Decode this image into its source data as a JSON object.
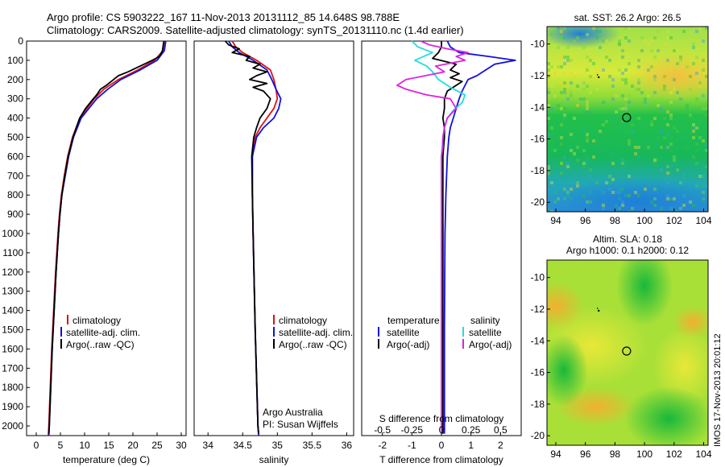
{
  "header": {
    "line1": "Argo profile: CS 5903222_167 11-Nov-2013 20131112_85 14.648S 98.788E",
    "line2": "Climatology: CARS2009. Satellite-adjusted climatology: synTS_20131110.nc (1.4d earlier)"
  },
  "side_stamp": "IMOS 17-Nov-2013 20:01:12",
  "colors": {
    "climatology": "#dd1111",
    "satellite": "#1111dd",
    "argo": "#000000",
    "sal_satellite": "#22dddd",
    "sal_argo": "#dd22dd"
  },
  "chart_data": [
    {
      "id": "temperature",
      "type": "line",
      "xlabel": "temperature (deg C)",
      "xlim": [
        -2,
        31
      ],
      "xticks": [
        "0",
        "5",
        "10",
        "15",
        "20",
        "25",
        "30"
      ],
      "xtick_values": [
        0,
        5,
        10,
        15,
        20,
        25,
        30
      ],
      "ylim": [
        0,
        2050
      ],
      "yticks": [
        "0",
        "100",
        "200",
        "300",
        "400",
        "500",
        "600",
        "700",
        "800",
        "900",
        "1000",
        "1100",
        "1200",
        "1300",
        "1400",
        "1500",
        "1600",
        "1700",
        "1800",
        "1900",
        "2000"
      ],
      "ytick_values": [
        0,
        100,
        200,
        300,
        400,
        500,
        600,
        700,
        800,
        900,
        1000,
        1100,
        1200,
        1300,
        1400,
        1500,
        1600,
        1700,
        1800,
        1900,
        2000
      ],
      "legend": [
        "climatology",
        "satellite-adj. clim.",
        "Argo(..raw -QC)"
      ],
      "series": [
        {
          "name": "climatology",
          "color": "climatology",
          "depth": [
            0,
            50,
            100,
            150,
            200,
            250,
            300,
            400,
            500,
            600,
            700,
            800,
            900,
            1000,
            1200,
            1400,
            1600,
            1800,
            2000,
            2050
          ],
          "values": [
            26.5,
            26.2,
            24.5,
            21,
            17,
            14,
            12,
            9,
            7.5,
            6.5,
            5.8,
            5.2,
            4.8,
            4.5,
            4,
            3.6,
            3.2,
            2.9,
            2.6,
            2.5
          ]
        },
        {
          "name": "satellite",
          "color": "satellite",
          "depth": [
            0,
            50,
            100,
            150,
            200,
            250,
            300,
            400,
            500,
            600,
            700,
            800,
            900,
            1000,
            1200,
            1400,
            1600,
            1800,
            2000,
            2050
          ],
          "values": [
            26.8,
            26.5,
            25,
            21.5,
            17.5,
            14.8,
            12.5,
            9.3,
            7.7,
            6.7,
            6,
            5.3,
            4.9,
            4.6,
            4.1,
            3.7,
            3.3,
            3,
            2.7,
            2.6
          ]
        },
        {
          "name": "Argo",
          "color": "argo",
          "depth": [
            0,
            50,
            80,
            100,
            130,
            160,
            180,
            200,
            230,
            250,
            280,
            300,
            350,
            400,
            500,
            600,
            700,
            800,
            900,
            1000,
            1200,
            1400,
            1600,
            1800,
            2000,
            2040
          ],
          "values": [
            26.4,
            26.1,
            25.5,
            24,
            21.5,
            19,
            17,
            16,
            14.5,
            13.3,
            12.5,
            11.8,
            10.2,
            9,
            7.6,
            6.6,
            5.9,
            5.3,
            4.9,
            4.6,
            4.1,
            3.7,
            3.3,
            3,
            2.7,
            2.6
          ]
        }
      ]
    },
    {
      "id": "salinity",
      "type": "line",
      "xlabel": "salinity",
      "xlim": [
        33.8,
        36.1
      ],
      "xticks": [
        "34",
        "34.5",
        "35",
        "35.5",
        "36"
      ],
      "xtick_values": [
        34,
        34.5,
        35,
        35.5,
        36
      ],
      "ylim": [
        0,
        2050
      ],
      "legend": [
        "climatology",
        "satellite-adj. clim.",
        "Argo(..raw -QC)"
      ],
      "annotation": [
        "Argo Australia",
        "PI: Susan Wijffels"
      ],
      "series": [
        {
          "name": "climatology",
          "color": "climatology",
          "depth": [
            0,
            30,
            60,
            100,
            150,
            200,
            250,
            300,
            350,
            400,
            450,
            500,
            600,
            800,
            1000,
            1500,
            2000,
            2050
          ],
          "values": [
            34.35,
            34.4,
            34.5,
            34.7,
            34.9,
            34.95,
            34.98,
            35.0,
            34.95,
            34.85,
            34.75,
            34.68,
            34.64,
            34.64,
            34.65,
            34.68,
            34.72,
            34.73
          ]
        },
        {
          "name": "satellite",
          "color": "satellite",
          "depth": [
            0,
            30,
            60,
            100,
            150,
            200,
            250,
            300,
            350,
            400,
            450,
            500,
            600,
            800,
            1000,
            1500,
            2000,
            2050
          ],
          "values": [
            34.3,
            34.35,
            34.45,
            34.65,
            34.85,
            34.92,
            34.98,
            35.05,
            35.02,
            34.95,
            34.8,
            34.7,
            34.64,
            34.64,
            34.65,
            34.68,
            34.72,
            34.73
          ]
        },
        {
          "name": "Argo",
          "color": "argo",
          "depth": [
            0,
            20,
            40,
            60,
            80,
            100,
            120,
            140,
            160,
            180,
            200,
            220,
            240,
            260,
            300,
            350,
            400,
            450,
            500,
            600,
            800,
            1000,
            1500,
            2000,
            2040
          ],
          "values": [
            34.25,
            34.3,
            34.45,
            34.35,
            34.6,
            34.55,
            34.75,
            34.65,
            34.85,
            34.7,
            34.6,
            34.85,
            34.65,
            34.8,
            34.9,
            34.85,
            34.75,
            34.7,
            34.66,
            34.63,
            34.64,
            34.65,
            34.68,
            34.72,
            34.73
          ]
        }
      ]
    },
    {
      "id": "difference",
      "type": "line",
      "xlabel": "T difference from climatology",
      "xlabel_top": "S difference from climatology",
      "xlim": [
        -2.7,
        2.7
      ],
      "xticks": [
        "-2",
        "-1",
        "0",
        "1",
        "2"
      ],
      "xtick_values": [
        -2,
        -1,
        0,
        1,
        2
      ],
      "top_ticks": [
        "-0.5",
        "-0.25",
        "0",
        "0.25",
        "0.5"
      ],
      "top_tick_values": [
        -2,
        -1,
        0,
        1,
        2
      ],
      "ylim": [
        0,
        2050
      ],
      "legend_left_title": "temperature",
      "legend_right_title": "salinity",
      "legend_left": [
        "satellite",
        "Argo(-adj)"
      ],
      "legend_right": [
        "satellite",
        "Argo(-adj)"
      ],
      "series": [
        {
          "name": "T satellite",
          "color": "satellite",
          "depth": [
            0,
            30,
            60,
            80,
            100,
            120,
            140,
            160,
            180,
            200,
            230,
            260,
            300,
            350,
            400,
            450,
            500,
            600,
            800,
            1000,
            1500,
            2000,
            2040
          ],
          "values": [
            0.2,
            0.3,
            0.6,
            1.6,
            2.5,
            1.8,
            1.6,
            1.4,
            1.2,
            0.9,
            0.8,
            0.7,
            0.6,
            0.5,
            0.4,
            0.3,
            0.25,
            0.2,
            0.15,
            0.12,
            0.1,
            0.1,
            0.1
          ]
        },
        {
          "name": "T Argo",
          "color": "argo",
          "depth": [
            0,
            30,
            60,
            90,
            120,
            150,
            170,
            190,
            210,
            230,
            260,
            300,
            350,
            400,
            450,
            500,
            600,
            800,
            1000,
            1500,
            2000,
            2040
          ],
          "values": [
            0,
            0,
            -0.1,
            -0.3,
            0.5,
            0.3,
            0.6,
            0.3,
            0.7,
            0.5,
            0.2,
            0.1,
            0.1,
            0.05,
            0.1,
            0.1,
            0.05,
            0.05,
            0.05,
            0.05,
            0.05,
            0.05
          ]
        },
        {
          "name": "S satellite",
          "color": "sal_satellite",
          "depth": [
            0,
            30,
            60,
            80,
            100,
            130,
            160,
            200,
            240,
            280,
            320,
            360,
            400,
            450,
            500,
            600,
            800,
            1000,
            1500,
            2000,
            2040
          ],
          "values": [
            -1,
            -0.8,
            -0.3,
            -0.6,
            -0.9,
            -0.5,
            -0.3,
            -0.1,
            0.3,
            0.8,
            0.7,
            0.4,
            0.2,
            0.1,
            0.05,
            0,
            0,
            0,
            0,
            0,
            0
          ]
        },
        {
          "name": "S Argo",
          "color": "sal_argo",
          "depth": [
            0,
            20,
            40,
            60,
            80,
            100,
            130,
            160,
            200,
            230,
            250,
            280,
            300,
            350,
            400,
            450,
            500,
            550,
            600,
            800,
            1000,
            1500,
            2000,
            2040
          ],
          "values": [
            -0.7,
            -0.4,
            0.2,
            0.9,
            0.5,
            0.8,
            -0.2,
            0.1,
            -1.2,
            -1.5,
            -1.2,
            -0.5,
            0.3,
            0.5,
            0.2,
            0.1,
            0.05,
            0.05,
            0,
            0,
            0,
            0,
            0,
            0
          ]
        }
      ]
    },
    {
      "id": "sst_map",
      "type": "heatmap",
      "title": "sat. SST: 26.2 Argo: 26.5",
      "xticks": [
        "94",
        "96",
        "98",
        "100",
        "102",
        "104"
      ],
      "xtick_values": [
        94,
        96,
        98,
        100,
        102,
        104
      ],
      "yticks": [
        "-10",
        "-12",
        "-14",
        "-16",
        "-18",
        "-20"
      ],
      "ytick_values": [
        -10,
        -12,
        -14,
        -16,
        -18,
        -20
      ],
      "xlim": [
        93.4,
        104.3
      ],
      "ylim": [
        -20.6,
        -8.9
      ],
      "argo_lon": 98.788,
      "argo_lat": -14.648,
      "track_lon": 96.9,
      "track_lat": -12.1
    },
    {
      "id": "sla_map",
      "type": "heatmap",
      "title": "Altim. SLA: 0.18",
      "subtitle": "Argo h1000: 0.1 h2000: 0.12",
      "xticks": [
        "94",
        "96",
        "98",
        "100",
        "102",
        "104"
      ],
      "xtick_values": [
        94,
        96,
        98,
        100,
        102,
        104
      ],
      "yticks": [
        "-10",
        "-12",
        "-14",
        "-16",
        "-18",
        "-20"
      ],
      "ytick_values": [
        -10,
        -12,
        -14,
        -16,
        -18,
        -20
      ],
      "xlim": [
        93.4,
        104.3
      ],
      "ylim": [
        -20.6,
        -8.9
      ],
      "argo_lon": 98.788,
      "argo_lat": -14.648,
      "track_lon": 96.9,
      "track_lat": -12.1
    }
  ]
}
